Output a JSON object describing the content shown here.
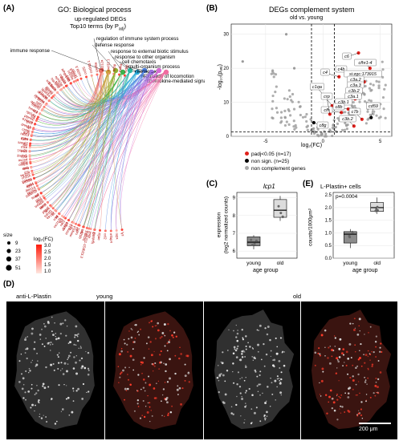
{
  "panel_a": {
    "letter": "(A)",
    "title": "GO: Biological process",
    "subtitle1": "up-regulated DEGs",
    "subtitle2": "Top10 terms (by P",
    "subtitle2_sub": "adj",
    "subtitle2_end": ")",
    "go_terms": [
      "regulation of immune system process",
      "immune response",
      "defense response",
      "response to external biotic stimulus",
      "response to other organism",
      "cell chemotaxis",
      "multi-organism process",
      "chemotaxis",
      "regulation of locomotion",
      "chemokine-mediated signaling pathway"
    ],
    "genes_left": [
      "pdcd1",
      "ccl20a",
      "arhgap6b",
      "cdk11b",
      "ephb3a",
      "hla-dmb",
      "col15a1b",
      "anxa6",
      "lgals3a",
      "sema3b",
      "psme4a",
      "sytl1",
      "mbnl1",
      "hmox1",
      "rgs14a",
      "ptpn6b",
      "tp53",
      "dnm1b",
      "ctsbb",
      "rab13",
      "cyba",
      "sasal2",
      "mxe",
      "mxc",
      "ifnphi1",
      "mcm4",
      "cebpb",
      "mxa",
      "il1b",
      "ch25h",
      "ccl19b",
      "irak4",
      "ifitm1a",
      "pafah1b",
      "leap2",
      "gig2",
      "tnfaip8",
      "tnfrsf",
      "ptgs2",
      "tnfrsf1",
      "il8",
      "ccl4",
      "cxcl12b",
      "rac2",
      "mmp9",
      "mmp13",
      "mmp14",
      "cd81",
      "lyn",
      "hmgb1",
      "vps4",
      "lgals9l3"
    ],
    "genes_right": [
      "rnd1b",
      "mdka",
      "tnfbp",
      "cxcl11.1",
      "cxcl12a",
      "cxcl8a",
      "ccl34b.1",
      "ccl25",
      "ccl39.3",
      "ccl39.8",
      "sf21",
      "ccr9a",
      "stat4",
      "ccl39.5",
      "cd74b",
      "socs1a",
      "ccl35.2",
      "cxcl18b",
      "il1b",
      "fos",
      "anxa1a",
      "cfp",
      "ighb",
      "cd59",
      "irf8",
      "sgms1",
      "il10",
      "stat2",
      "lysb",
      "ccl19a",
      "tnfaip3",
      "ccl4b",
      "cxcr4a",
      "il6r",
      "irf1b",
      "lectb",
      "ccl5",
      "cd74a",
      "ifit",
      "cfb",
      "c3a.1",
      "c7b",
      "c6",
      "ccl25b",
      "si:ch211-153b23.3",
      "lp",
      "itgae",
      "ccl2",
      "mfap4",
      "mpx",
      "lyz"
    ],
    "size_legend_title": "size",
    "size_values": [
      "9",
      "23",
      "37",
      "51"
    ],
    "color_legend_title": "log₂(FC)",
    "color_values": [
      "3.0",
      "2.5",
      "2.0",
      "1.5",
      "1.0"
    ]
  },
  "panel_b": {
    "letter": "(B)",
    "title": "DEGs complement system",
    "subtitle": "old vs. young",
    "ylabel": "-log₁₀(pₐₑⱼ)",
    "xlabel": "log₂(FC)",
    "yticks": [
      "30",
      "20",
      "10",
      "0"
    ],
    "xticks": [
      "-5",
      "0",
      "5"
    ],
    "labels": [
      "c6",
      "cfhr1-4",
      "c4b",
      "si:zgc:173915",
      "c4",
      "c3a.2",
      "c3a.3",
      "c3b.2",
      "c3a.1",
      "c3b.1",
      "c1qa",
      "c8b",
      "cfh",
      "crp",
      "c7b",
      "c8g",
      "c3b.2",
      "cd59"
    ],
    "legend": [
      "padj<0.05 (n=17)",
      "non sign.  (n=25)",
      "non complement genes"
    ],
    "legend_colors": [
      "#e0201b",
      "#000000",
      "#a9a9a9"
    ],
    "chart_data": {
      "type": "scatter",
      "xlabel": "log2(FC)",
      "ylabel": "-log10(padj)",
      "xlim": [
        -8,
        6
      ],
      "ylim": [
        0,
        33
      ],
      "thresholds": {
        "x": [
          -1,
          1
        ],
        "y": 1.3
      }
    }
  },
  "panel_c": {
    "letter": "(C)",
    "title": "lcp1",
    "ylabel": "expression",
    "ylabel2": "(log2 normalized counts)",
    "xlabel": "age group",
    "categories": [
      "young",
      "old"
    ],
    "yticks": [
      "9",
      "8",
      "7",
      "6"
    ],
    "chart_data": {
      "type": "box",
      "categories": [
        "young",
        "old"
      ],
      "ylim": [
        5.6,
        9.3
      ],
      "medians": [
        6.5,
        8.3
      ],
      "q1": [
        6.3,
        7.9
      ],
      "q3": [
        6.8,
        8.9
      ],
      "min": [
        6.1,
        7.7
      ],
      "max": [
        6.9,
        9.1
      ]
    }
  },
  "panel_e": {
    "letter": "(E)",
    "title": "L-Plastin+ cells",
    "pvalue": "p=0.0004",
    "ylabel": "counts/1000μm²",
    "xlabel": "age group",
    "categories": [
      "young",
      "old"
    ],
    "yticks": [
      "2.5",
      "2.0",
      "1.5",
      "1.0",
      "0.5",
      "0.0"
    ],
    "chart_data": {
      "type": "box",
      "categories": [
        "young",
        "old"
      ],
      "ylim": [
        0,
        2.6
      ],
      "medians": [
        0.95,
        2.0
      ],
      "q1": [
        0.6,
        1.85
      ],
      "q3": [
        1.05,
        2.2
      ],
      "min": [
        0.4,
        1.75
      ],
      "max": [
        1.15,
        2.4
      ]
    }
  },
  "panel_d": {
    "letter": "(D)",
    "stain_label": "anti-L-Plastin",
    "group_labels": [
      "young",
      "old"
    ],
    "scale_bar": "200 μm"
  }
}
